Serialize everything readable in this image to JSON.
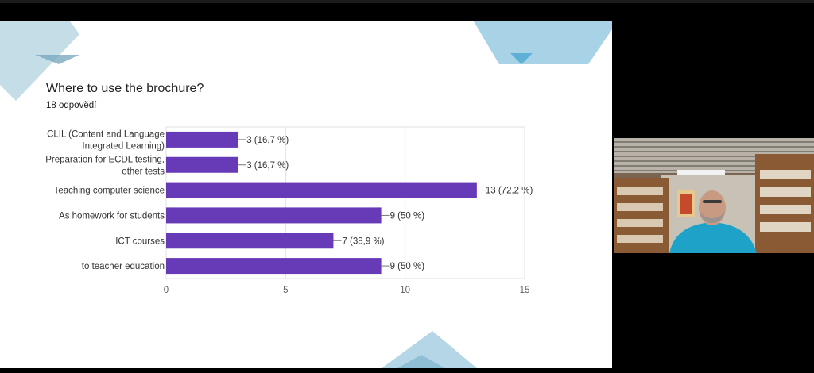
{
  "survey": {
    "question": "Where to use the brochure?",
    "responses": "18 odpovědí"
  },
  "chart_data": {
    "type": "bar",
    "orientation": "horizontal",
    "categories": [
      [
        "CLIL (Content and Language",
        "Integrated Learning)"
      ],
      [
        "Preparation for ECDL testing,",
        "other tests"
      ],
      [
        "Teaching computer science"
      ],
      [
        "As homework for students"
      ],
      [
        "ICT courses"
      ],
      [
        "to teacher education"
      ]
    ],
    "values": [
      3,
      3,
      13,
      9,
      7,
      9
    ],
    "data_labels": [
      "3 (16,7 %)",
      "3 (16,7 %)",
      "13 (72,2 %)",
      "9 (50 %)",
      "7 (38,9 %)",
      "9 (50 %)"
    ],
    "xlim": [
      0,
      15
    ],
    "x_ticks": [
      0,
      5,
      10,
      15
    ],
    "bar_color": "#673ab7",
    "grid": true
  },
  "colors": {
    "slide_background": "#ffffff",
    "decoration": "#9ec9dc",
    "screen_background": "#000000"
  },
  "participant_video": {
    "description": "webcam tile of a participant in a room with bookshelves"
  }
}
